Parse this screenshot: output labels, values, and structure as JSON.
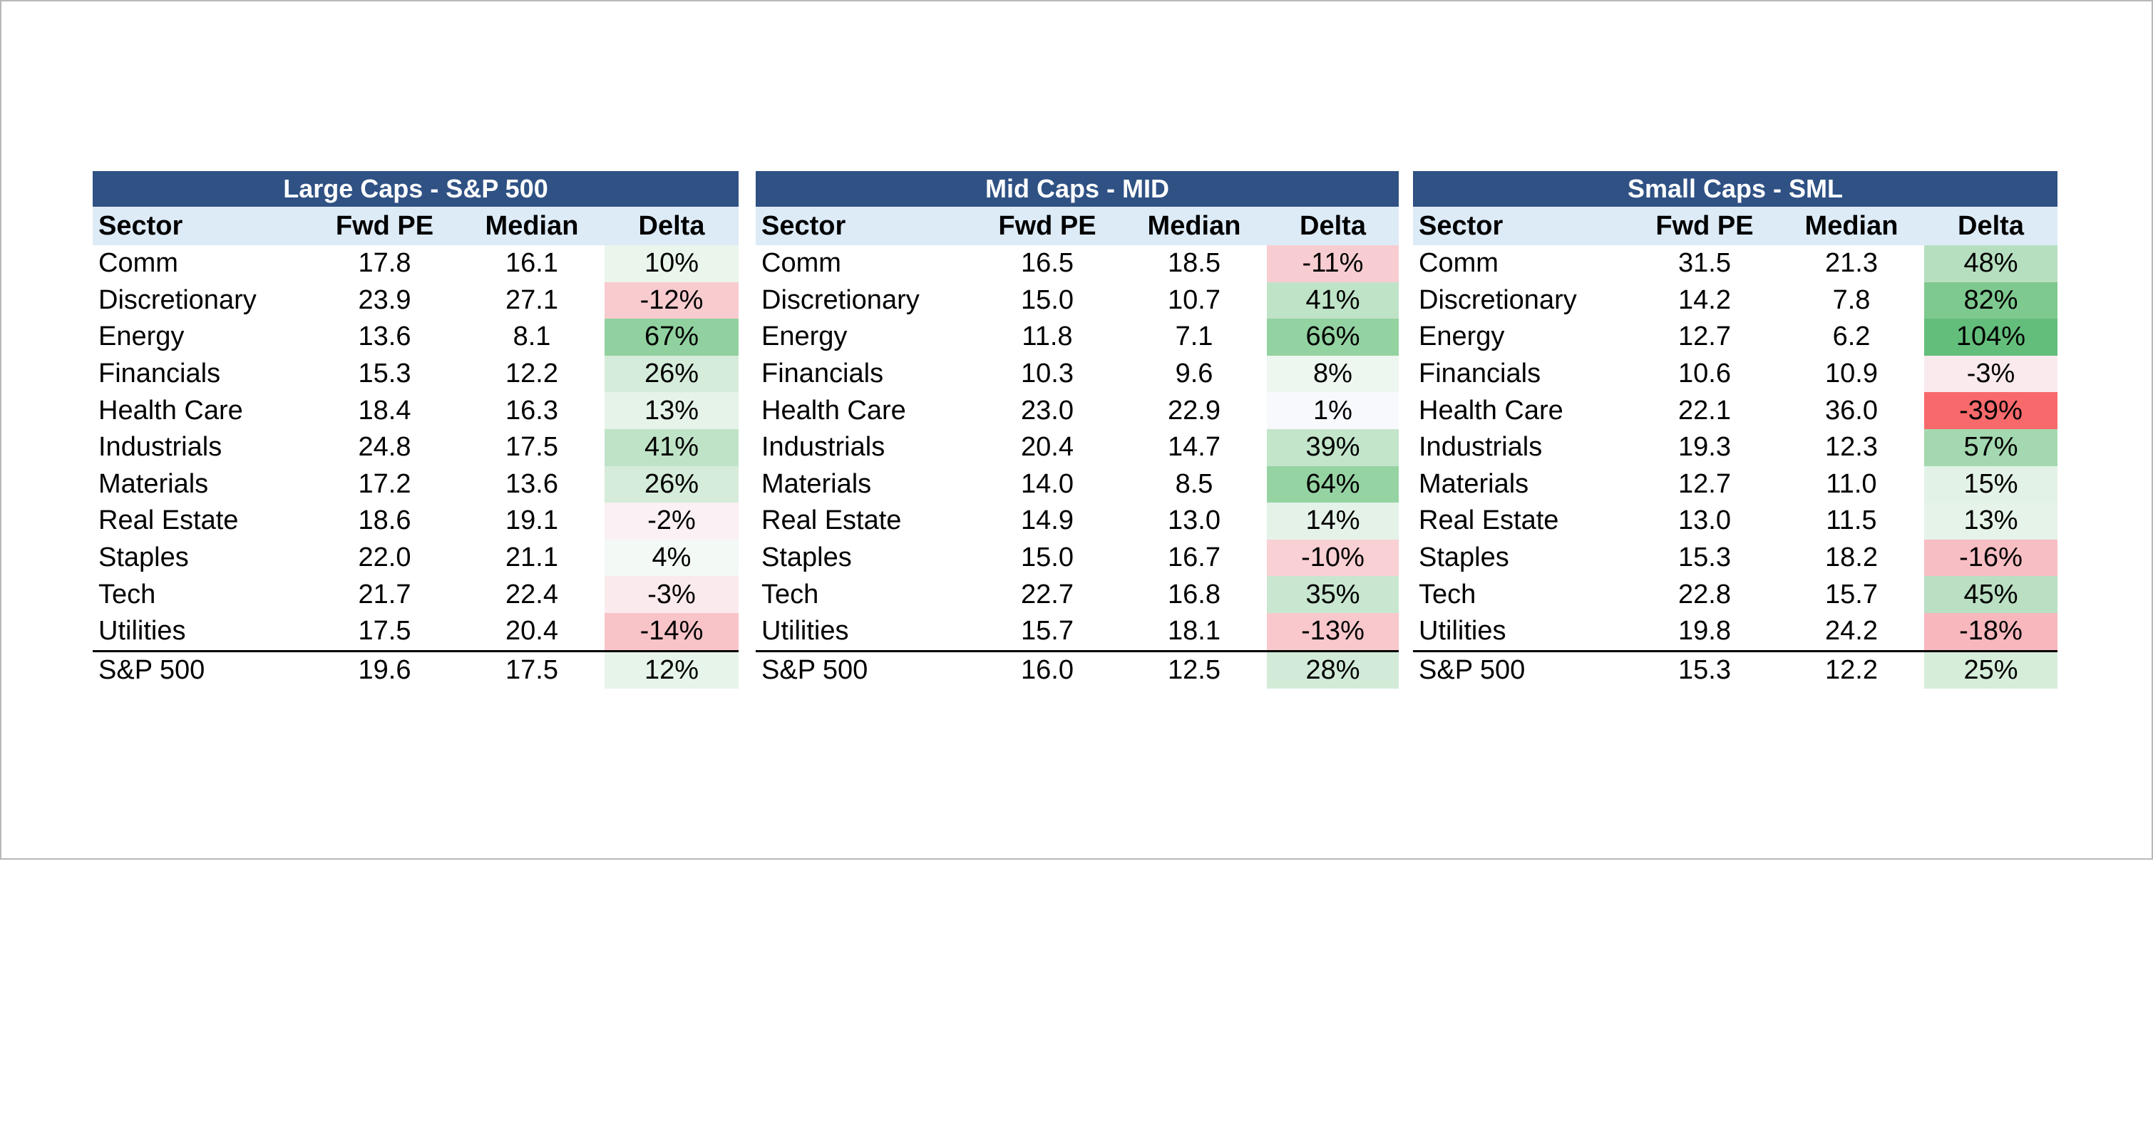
{
  "panels": [
    {
      "title": "Large Caps - S&P 500",
      "headers": [
        "Sector",
        "Fwd PE",
        "Median",
        "Delta"
      ],
      "rows": [
        {
          "sector": "Comm",
          "fwd_pe": "17.8",
          "median": "16.1",
          "delta": "10%",
          "delta_color": "#eaf5ec"
        },
        {
          "sector": "Discretionary",
          "fwd_pe": "23.9",
          "median": "27.1",
          "delta": "-12%",
          "delta_color": "#f8cbcf"
        },
        {
          "sector": "Energy",
          "fwd_pe": "13.6",
          "median": "8.1",
          "delta": "67%",
          "delta_color": "#91d19f"
        },
        {
          "sector": "Financials",
          "fwd_pe": "15.3",
          "median": "12.2",
          "delta": "26%",
          "delta_color": "#d5ecda"
        },
        {
          "sector": "Health Care",
          "fwd_pe": "18.4",
          "median": "16.3",
          "delta": "13%",
          "delta_color": "#e6f3e9"
        },
        {
          "sector": "Industrials",
          "fwd_pe": "24.8",
          "median": "17.5",
          "delta": "41%",
          "delta_color": "#bfe3c7"
        },
        {
          "sector": "Materials",
          "fwd_pe": "17.2",
          "median": "13.6",
          "delta": "26%",
          "delta_color": "#d5ecda"
        },
        {
          "sector": "Real Estate",
          "fwd_pe": "18.6",
          "median": "19.1",
          "delta": "-2%",
          "delta_color": "#fbf0f3"
        },
        {
          "sector": "Staples",
          "fwd_pe": "22.0",
          "median": "21.1",
          "delta": "4%",
          "delta_color": "#f3f9f5"
        },
        {
          "sector": "Tech",
          "fwd_pe": "21.7",
          "median": "22.4",
          "delta": "-3%",
          "delta_color": "#fbeaed"
        },
        {
          "sector": "Utilities",
          "fwd_pe": "17.5",
          "median": "20.4",
          "delta": "-14%",
          "delta_color": "#f8c4c8"
        }
      ],
      "total": {
        "sector": "S&P 500",
        "fwd_pe": "19.6",
        "median": "17.5",
        "delta": "12%",
        "delta_color": "#e7f4ea"
      }
    },
    {
      "title": "Mid Caps - MID",
      "headers": [
        "Sector",
        "Fwd PE",
        "Median",
        "Delta"
      ],
      "rows": [
        {
          "sector": "Comm",
          "fwd_pe": "16.5",
          "median": "18.5",
          "delta": "-11%",
          "delta_color": "#f8cdd1"
        },
        {
          "sector": "Discretionary",
          "fwd_pe": "15.0",
          "median": "10.7",
          "delta": "41%",
          "delta_color": "#bfe3c7"
        },
        {
          "sector": "Energy",
          "fwd_pe": "11.8",
          "median": "7.1",
          "delta": "66%",
          "delta_color": "#93d2a1"
        },
        {
          "sector": "Financials",
          "fwd_pe": "10.3",
          "median": "9.6",
          "delta": "8%",
          "delta_color": "#edf7f0"
        },
        {
          "sector": "Health Care",
          "fwd_pe": "23.0",
          "median": "22.9",
          "delta": "1%",
          "delta_color": "#f8f9fd"
        },
        {
          "sector": "Industrials",
          "fwd_pe": "20.4",
          "median": "14.7",
          "delta": "39%",
          "delta_color": "#c3e5ca"
        },
        {
          "sector": "Materials",
          "fwd_pe": "14.0",
          "median": "8.5",
          "delta": "64%",
          "delta_color": "#96d3a3"
        },
        {
          "sector": "Real Estate",
          "fwd_pe": "14.9",
          "median": "13.0",
          "delta": "14%",
          "delta_color": "#e4f2e7"
        },
        {
          "sector": "Staples",
          "fwd_pe": "15.0",
          "median": "16.7",
          "delta": "-10%",
          "delta_color": "#f9d0d4"
        },
        {
          "sector": "Tech",
          "fwd_pe": "22.7",
          "median": "16.8",
          "delta": "35%",
          "delta_color": "#c9e7d0"
        },
        {
          "sector": "Utilities",
          "fwd_pe": "15.7",
          "median": "18.1",
          "delta": "-13%",
          "delta_color": "#f8c8cc"
        }
      ],
      "total": {
        "sector": "S&P 500",
        "fwd_pe": "16.0",
        "median": "12.5",
        "delta": "28%",
        "delta_color": "#d2ebd8"
      }
    },
    {
      "title": "Small Caps - SML",
      "headers": [
        "Sector",
        "Fwd PE",
        "Median",
        "Delta"
      ],
      "rows": [
        {
          "sector": "Comm",
          "fwd_pe": "31.5",
          "median": "21.3",
          "delta": "48%",
          "delta_color": "#b6dfbf"
        },
        {
          "sector": "Discretionary",
          "fwd_pe": "14.2",
          "median": "7.8",
          "delta": "82%",
          "delta_color": "#7ec98f"
        },
        {
          "sector": "Energy",
          "fwd_pe": "12.7",
          "median": "6.2",
          "delta": "104%",
          "delta_color": "#63be7b"
        },
        {
          "sector": "Financials",
          "fwd_pe": "10.6",
          "median": "10.9",
          "delta": "-3%",
          "delta_color": "#fbeaed"
        },
        {
          "sector": "Health Care",
          "fwd_pe": "22.1",
          "median": "36.0",
          "delta": "-39%",
          "delta_color": "#f8696b"
        },
        {
          "sector": "Industrials",
          "fwd_pe": "19.3",
          "median": "12.3",
          "delta": "57%",
          "delta_color": "#a4d8b0"
        },
        {
          "sector": "Materials",
          "fwd_pe": "12.7",
          "median": "11.0",
          "delta": "15%",
          "delta_color": "#e3f2e6"
        },
        {
          "sector": "Real Estate",
          "fwd_pe": "13.0",
          "median": "11.5",
          "delta": "13%",
          "delta_color": "#e6f3e9"
        },
        {
          "sector": "Staples",
          "fwd_pe": "15.3",
          "median": "18.2",
          "delta": "-16%",
          "delta_color": "#f7bec3"
        },
        {
          "sector": "Tech",
          "fwd_pe": "22.8",
          "median": "15.7",
          "delta": "45%",
          "delta_color": "#badfc3"
        },
        {
          "sector": "Utilities",
          "fwd_pe": "19.8",
          "median": "24.2",
          "delta": "-18%",
          "delta_color": "#f7b7bc"
        }
      ],
      "total": {
        "sector": "S&P 500",
        "fwd_pe": "15.3",
        "median": "12.2",
        "delta": "25%",
        "delta_color": "#d6edda"
      }
    }
  ]
}
